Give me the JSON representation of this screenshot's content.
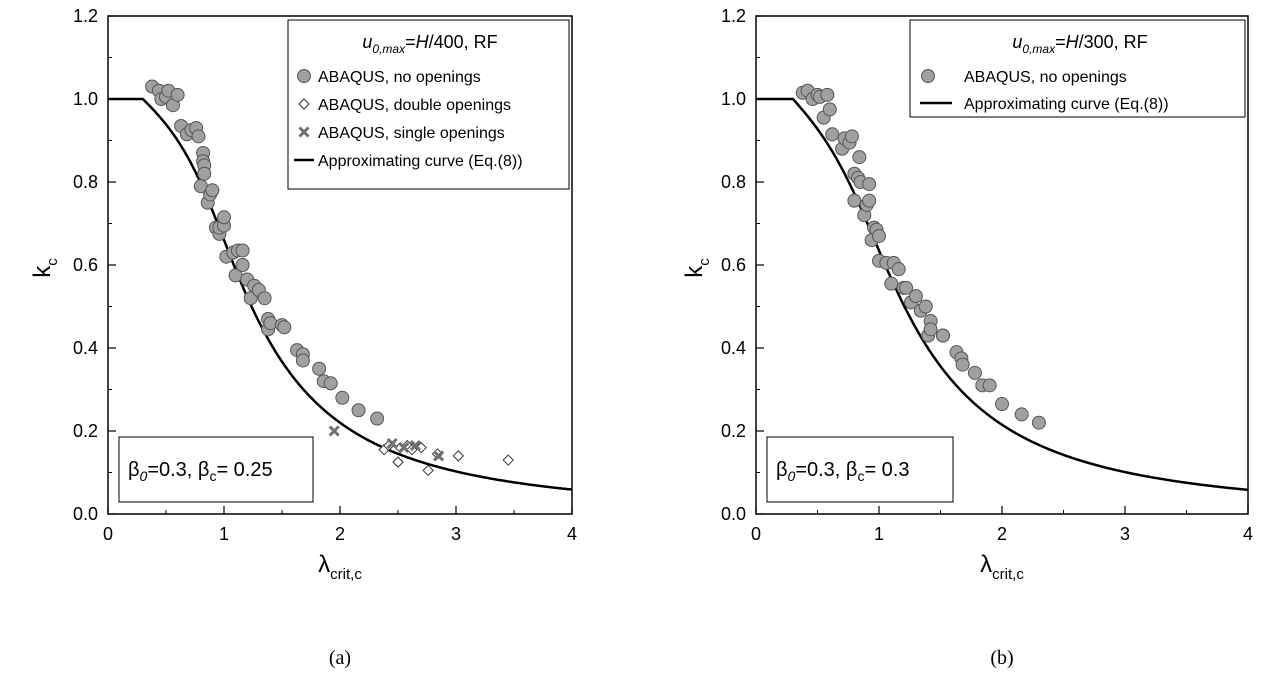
{
  "chart_data": [
    {
      "type": "scatter",
      "panel_label": "(a)",
      "xlim": [
        0,
        4
      ],
      "ylim": [
        0,
        1.2
      ],
      "xticks": [
        "0",
        "1",
        "2",
        "3",
        "4"
      ],
      "yticks": [
        "0.0",
        "0.2",
        "0.4",
        "0.6",
        "0.8",
        "1.0",
        "1.2"
      ],
      "ylabel": {
        "main": "k",
        "sub": "c"
      },
      "xlabel": {
        "main": "λ",
        "sub": "crit,c"
      },
      "legend": {
        "position": "top-right",
        "title_pre": "u",
        "title_sub": "0,max",
        "title_eq": "=",
        "title_var": "H",
        "title_post": "/400, RF"
      },
      "annotation": {
        "position": "bottom-left",
        "b0": "β",
        "b0_sub": "0",
        "b0_val": "=0.3, ",
        "bc": "β",
        "bc_sub": "c",
        "bc_val": "= 0.25"
      },
      "series": [
        {
          "name": "ABAQUS, no openings",
          "marker": "circle",
          "color": "#a0a0a0",
          "points": [
            [
              0.38,
              1.03
            ],
            [
              0.44,
              1.02
            ],
            [
              0.46,
              1.0
            ],
            [
              0.5,
              1.005
            ],
            [
              0.52,
              1.02
            ],
            [
              0.56,
              0.985
            ],
            [
              0.6,
              1.01
            ],
            [
              0.63,
              0.935
            ],
            [
              0.68,
              0.915
            ],
            [
              0.72,
              0.925
            ],
            [
              0.76,
              0.93
            ],
            [
              0.78,
              0.91
            ],
            [
              0.8,
              0.79
            ],
            [
              0.82,
              0.87
            ],
            [
              0.82,
              0.85
            ],
            [
              0.83,
              0.84
            ],
            [
              0.83,
              0.82
            ],
            [
              0.86,
              0.75
            ],
            [
              0.88,
              0.77
            ],
            [
              0.9,
              0.78
            ],
            [
              0.93,
              0.69
            ],
            [
              0.96,
              0.675
            ],
            [
              0.96,
              0.69
            ],
            [
              1.0,
              0.695
            ],
            [
              1.0,
              0.715
            ],
            [
              1.02,
              0.62
            ],
            [
              1.08,
              0.63
            ],
            [
              1.1,
              0.575
            ],
            [
              1.12,
              0.635
            ],
            [
              1.16,
              0.635
            ],
            [
              1.16,
              0.6
            ],
            [
              1.2,
              0.565
            ],
            [
              1.23,
              0.52
            ],
            [
              1.26,
              0.55
            ],
            [
              1.3,
              0.54
            ],
            [
              1.35,
              0.52
            ],
            [
              1.38,
              0.445
            ],
            [
              1.38,
              0.47
            ],
            [
              1.4,
              0.46
            ],
            [
              1.5,
              0.455
            ],
            [
              1.52,
              0.45
            ],
            [
              1.63,
              0.395
            ],
            [
              1.68,
              0.385
            ],
            [
              1.68,
              0.37
            ],
            [
              1.82,
              0.35
            ],
            [
              1.86,
              0.32
            ],
            [
              1.92,
              0.315
            ],
            [
              2.02,
              0.28
            ],
            [
              2.16,
              0.25
            ],
            [
              2.32,
              0.23
            ]
          ]
        },
        {
          "name": "ABAQUS, double openings",
          "marker": "diamond",
          "color": "#ffffff",
          "points": [
            [
              2.38,
              0.155
            ],
            [
              2.42,
              0.165
            ],
            [
              2.5,
              0.125
            ],
            [
              2.52,
              0.16
            ],
            [
              2.58,
              0.165
            ],
            [
              2.62,
              0.155
            ],
            [
              2.7,
              0.16
            ],
            [
              2.76,
              0.105
            ],
            [
              2.84,
              0.145
            ],
            [
              3.02,
              0.14
            ],
            [
              3.45,
              0.13
            ]
          ]
        },
        {
          "name": "ABAQUS, single openings",
          "marker": "cross",
          "color": "#707070",
          "points": [
            [
              1.95,
              0.2
            ],
            [
              2.45,
              0.17
            ],
            [
              2.55,
              0.16
            ],
            [
              2.65,
              0.165
            ],
            [
              2.85,
              0.14
            ]
          ]
        },
        {
          "name": "Approximating curve (Eq.(8))",
          "marker": "line",
          "color": "#000000",
          "beta0": 0.3,
          "betac": 0.25,
          "lambda0": 0.3
        }
      ]
    },
    {
      "type": "scatter",
      "panel_label": "(b)",
      "xlim": [
        0,
        4
      ],
      "ylim": [
        0,
        1.2
      ],
      "xticks": [
        "0",
        "1",
        "2",
        "3",
        "4"
      ],
      "yticks": [
        "0.0",
        "0.2",
        "0.4",
        "0.6",
        "0.8",
        "1.0",
        "1.2"
      ],
      "ylabel": {
        "main": "k",
        "sub": "c"
      },
      "xlabel": {
        "main": "λ",
        "sub": "crit,c"
      },
      "legend": {
        "position": "top-right",
        "title_pre": "u",
        "title_sub": "0,max",
        "title_eq": "=",
        "title_var": "H",
        "title_post": "/300, RF"
      },
      "annotation": {
        "position": "bottom-left",
        "b0": "β",
        "b0_sub": "0",
        "b0_val": "=0.3, ",
        "bc": "β",
        "bc_sub": "c",
        "bc_val": "= 0.3"
      },
      "series": [
        {
          "name": "ABAQUS, no openings",
          "marker": "circle",
          "color": "#a0a0a0",
          "points": [
            [
              0.38,
              1.015
            ],
            [
              0.42,
              1.02
            ],
            [
              0.46,
              1.0
            ],
            [
              0.5,
              1.01
            ],
            [
              0.52,
              1.005
            ],
            [
              0.55,
              0.955
            ],
            [
              0.58,
              1.01
            ],
            [
              0.6,
              0.975
            ],
            [
              0.62,
              0.915
            ],
            [
              0.7,
              0.88
            ],
            [
              0.72,
              0.905
            ],
            [
              0.76,
              0.895
            ],
            [
              0.78,
              0.91
            ],
            [
              0.8,
              0.82
            ],
            [
              0.8,
              0.755
            ],
            [
              0.83,
              0.81
            ],
            [
              0.84,
              0.86
            ],
            [
              0.85,
              0.8
            ],
            [
              0.88,
              0.72
            ],
            [
              0.9,
              0.745
            ],
            [
              0.92,
              0.795
            ],
            [
              0.92,
              0.755
            ],
            [
              0.94,
              0.66
            ],
            [
              0.96,
              0.69
            ],
            [
              0.98,
              0.685
            ],
            [
              1.0,
              0.67
            ],
            [
              1.0,
              0.61
            ],
            [
              1.06,
              0.605
            ],
            [
              1.1,
              0.555
            ],
            [
              1.12,
              0.605
            ],
            [
              1.16,
              0.59
            ],
            [
              1.2,
              0.545
            ],
            [
              1.22,
              0.545
            ],
            [
              1.26,
              0.51
            ],
            [
              1.3,
              0.525
            ],
            [
              1.34,
              0.49
            ],
            [
              1.38,
              0.5
            ],
            [
              1.4,
              0.43
            ],
            [
              1.42,
              0.465
            ],
            [
              1.42,
              0.445
            ],
            [
              1.52,
              0.43
            ],
            [
              1.52,
              0.43
            ],
            [
              1.63,
              0.39
            ],
            [
              1.67,
              0.375
            ],
            [
              1.68,
              0.36
            ],
            [
              1.78,
              0.34
            ],
            [
              1.84,
              0.31
            ],
            [
              1.9,
              0.31
            ],
            [
              2.0,
              0.265
            ],
            [
              2.16,
              0.24
            ],
            [
              2.3,
              0.22
            ]
          ]
        },
        {
          "name": "Approximating curve (Eq.(8))",
          "marker": "line",
          "color": "#000000",
          "beta0": 0.3,
          "betac": 0.3,
          "lambda0": 0.3
        }
      ]
    }
  ]
}
